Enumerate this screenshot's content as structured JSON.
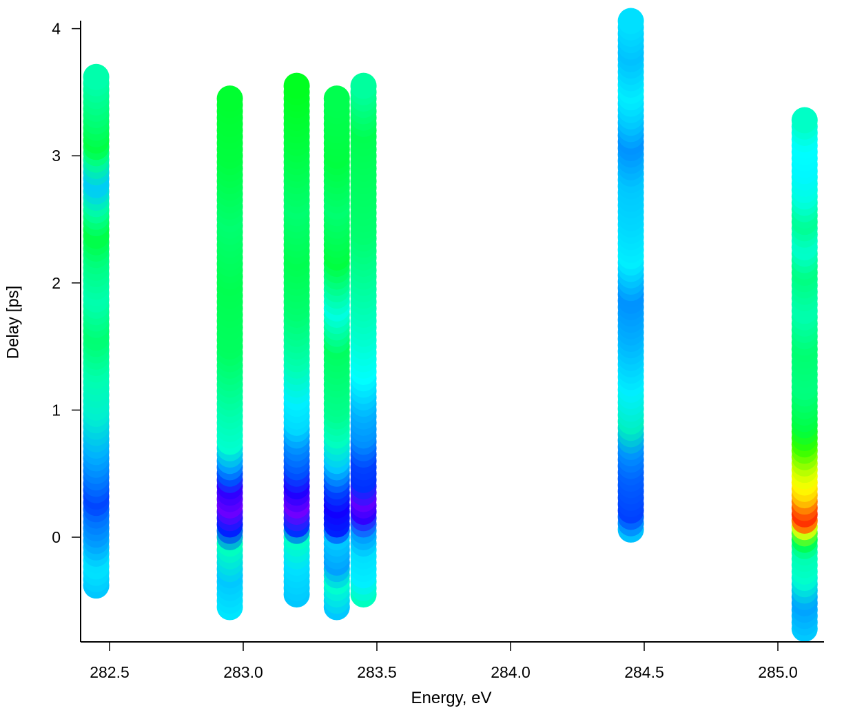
{
  "chart_data": {
    "type": "scatter",
    "title": "",
    "xlabel": "Energy, eV",
    "ylabel": "Delay [ps]",
    "xlim": [
      282.4,
      285.2
    ],
    "ylim": [
      -0.82,
      4.08
    ],
    "grid": false,
    "legend": "none",
    "x_ticks": [
      {
        "value": 282.5,
        "label": "282.5"
      },
      {
        "value": 283.0,
        "label": "283.0"
      },
      {
        "value": 283.5,
        "label": "283.5"
      },
      {
        "value": 284.0,
        "label": "284.0"
      },
      {
        "value": 284.5,
        "label": "284.5"
      },
      {
        "value": 285.0,
        "label": "285.0"
      }
    ],
    "y_ticks": [
      {
        "value": 0,
        "label": "0"
      },
      {
        "value": 1,
        "label": "1"
      },
      {
        "value": 2,
        "label": "2"
      },
      {
        "value": 3,
        "label": "3"
      },
      {
        "value": 4,
        "label": "4"
      }
    ],
    "colormap": "rainbow (purple = low, blue, cyan, green, yellow, orange, red = high)",
    "columns": [
      {
        "energy": 282.45,
        "delay_min": -0.38,
        "delay_max": 3.64,
        "step": 0.05,
        "color_stops": [
          [
            -0.38,
            "#00c8ff"
          ],
          [
            -0.2,
            "#00e6ff"
          ],
          [
            0.0,
            "#00a0ff"
          ],
          [
            0.2,
            "#0070ff"
          ],
          [
            0.3,
            "#0040ff"
          ],
          [
            0.45,
            "#0070ff"
          ],
          [
            0.7,
            "#00b0ff"
          ],
          [
            1.0,
            "#00f0d0"
          ],
          [
            1.3,
            "#00ffb0"
          ],
          [
            1.6,
            "#00ff70"
          ],
          [
            1.9,
            "#00ffb0"
          ],
          [
            2.2,
            "#00ff80"
          ],
          [
            2.4,
            "#00ff40"
          ],
          [
            2.6,
            "#00ffa0"
          ],
          [
            2.8,
            "#00c8ff"
          ],
          [
            3.0,
            "#00ff90"
          ],
          [
            3.1,
            "#00ff40"
          ],
          [
            3.3,
            "#00ff70"
          ],
          [
            3.64,
            "#00ffb0"
          ]
        ]
      },
      {
        "energy": 282.95,
        "delay_min": -0.55,
        "delay_max": 3.46,
        "step": 0.05,
        "color_stops": [
          [
            -0.55,
            "#00e6ff"
          ],
          [
            -0.3,
            "#00c8ff"
          ],
          [
            -0.05,
            "#00ffc0"
          ],
          [
            0.1,
            "#0020ff"
          ],
          [
            0.25,
            "#6a00ff"
          ],
          [
            0.4,
            "#3000ff"
          ],
          [
            0.5,
            "#0050ff"
          ],
          [
            0.6,
            "#00a0ff"
          ],
          [
            0.75,
            "#00ffd0"
          ],
          [
            1.0,
            "#00ffb0"
          ],
          [
            1.5,
            "#00ff60"
          ],
          [
            2.0,
            "#00ff50"
          ],
          [
            2.5,
            "#00ff70"
          ],
          [
            3.0,
            "#00ff40"
          ],
          [
            3.46,
            "#00ff30"
          ]
        ]
      },
      {
        "energy": 283.2,
        "delay_min": -0.45,
        "delay_max": 3.56,
        "step": 0.05,
        "color_stops": [
          [
            -0.45,
            "#00c8ff"
          ],
          [
            -0.2,
            "#00e0ff"
          ],
          [
            0.0,
            "#00ffc8"
          ],
          [
            0.1,
            "#0030ff"
          ],
          [
            0.25,
            "#7000ff"
          ],
          [
            0.4,
            "#2000ff"
          ],
          [
            0.55,
            "#0050ff"
          ],
          [
            0.75,
            "#0090ff"
          ],
          [
            0.9,
            "#00d8ff"
          ],
          [
            1.1,
            "#00f0ff"
          ],
          [
            1.4,
            "#00ffb0"
          ],
          [
            1.8,
            "#00ff70"
          ],
          [
            2.2,
            "#00ff50"
          ],
          [
            2.6,
            "#00ff70"
          ],
          [
            3.1,
            "#00ff40"
          ],
          [
            3.56,
            "#00ff20"
          ]
        ]
      },
      {
        "energy": 283.35,
        "delay_min": -0.55,
        "delay_max": 3.47,
        "step": 0.05,
        "color_stops": [
          [
            -0.55,
            "#00c8ff"
          ],
          [
            -0.35,
            "#00ffd0"
          ],
          [
            -0.2,
            "#00a0ff"
          ],
          [
            0.0,
            "#00c8ff"
          ],
          [
            0.1,
            "#0020ff"
          ],
          [
            0.25,
            "#1000ff"
          ],
          [
            0.4,
            "#0040ff"
          ],
          [
            0.6,
            "#00c8ff"
          ],
          [
            0.8,
            "#00ffc0"
          ],
          [
            1.0,
            "#00ff90"
          ],
          [
            1.5,
            "#00ff60"
          ],
          [
            1.8,
            "#00ffe0"
          ],
          [
            2.2,
            "#00ff40"
          ],
          [
            2.6,
            "#00ff70"
          ],
          [
            3.0,
            "#00ff40"
          ],
          [
            3.47,
            "#00ff50"
          ]
        ]
      },
      {
        "energy": 283.45,
        "delay_min": -0.45,
        "delay_max": 3.56,
        "step": 0.05,
        "color_stops": [
          [
            -0.45,
            "#00ffc0"
          ],
          [
            -0.3,
            "#00f0ff"
          ],
          [
            -0.1,
            "#00e0ff"
          ],
          [
            0.05,
            "#00a0ff"
          ],
          [
            0.2,
            "#3000ff"
          ],
          [
            0.3,
            "#6000ff"
          ],
          [
            0.45,
            "#0030ff"
          ],
          [
            0.6,
            "#0040ff"
          ],
          [
            0.8,
            "#0090ff"
          ],
          [
            1.0,
            "#00b0ff"
          ],
          [
            1.3,
            "#00ffff"
          ],
          [
            1.6,
            "#00ffd0"
          ],
          [
            2.0,
            "#00ffa0"
          ],
          [
            2.4,
            "#00ff70"
          ],
          [
            2.8,
            "#00ff60"
          ],
          [
            3.2,
            "#00ff50"
          ],
          [
            3.56,
            "#00ffa0"
          ]
        ]
      },
      {
        "energy": 284.45,
        "delay_min": 0.06,
        "delay_max": 4.06,
        "step": 0.05,
        "color_stops": [
          [
            0.06,
            "#00c0ff"
          ],
          [
            0.2,
            "#0040ff"
          ],
          [
            0.35,
            "#0050ff"
          ],
          [
            0.5,
            "#0060ff"
          ],
          [
            0.7,
            "#0090ff"
          ],
          [
            0.9,
            "#00f0c0"
          ],
          [
            1.2,
            "#00f0ff"
          ],
          [
            1.6,
            "#00b0ff"
          ],
          [
            1.9,
            "#0090ff"
          ],
          [
            2.2,
            "#00f0ff"
          ],
          [
            2.5,
            "#00d8ff"
          ],
          [
            2.8,
            "#00c8ff"
          ],
          [
            3.1,
            "#0090ff"
          ],
          [
            3.3,
            "#00c8ff"
          ],
          [
            3.5,
            "#00f0ff"
          ],
          [
            3.8,
            "#00c0ff"
          ],
          [
            4.06,
            "#00e0ff"
          ]
        ]
      },
      {
        "energy": 285.1,
        "delay_min": -0.72,
        "delay_max": 3.3,
        "step": 0.05,
        "color_stops": [
          [
            -0.72,
            "#00c8ff"
          ],
          [
            -0.5,
            "#00a0ff"
          ],
          [
            -0.3,
            "#00ffd0"
          ],
          [
            -0.1,
            "#00ffb0"
          ],
          [
            0.0,
            "#00ff40"
          ],
          [
            0.1,
            "#ffff00"
          ],
          [
            0.15,
            "#ff2000"
          ],
          [
            0.25,
            "#ff6000"
          ],
          [
            0.35,
            "#ffd000"
          ],
          [
            0.45,
            "#ffff00"
          ],
          [
            0.55,
            "#d0ff00"
          ],
          [
            0.65,
            "#80ff00"
          ],
          [
            0.75,
            "#30ff00"
          ],
          [
            0.9,
            "#00ff40"
          ],
          [
            1.2,
            "#00ff80"
          ],
          [
            1.5,
            "#00ff70"
          ],
          [
            1.8,
            "#00ffb0"
          ],
          [
            2.1,
            "#00ff80"
          ],
          [
            2.3,
            "#00ffd0"
          ],
          [
            2.5,
            "#00ff90"
          ],
          [
            2.7,
            "#00ffe0"
          ],
          [
            2.9,
            "#00f8ff"
          ],
          [
            3.1,
            "#00ffff"
          ],
          [
            3.3,
            "#00ffc0"
          ]
        ]
      }
    ]
  }
}
